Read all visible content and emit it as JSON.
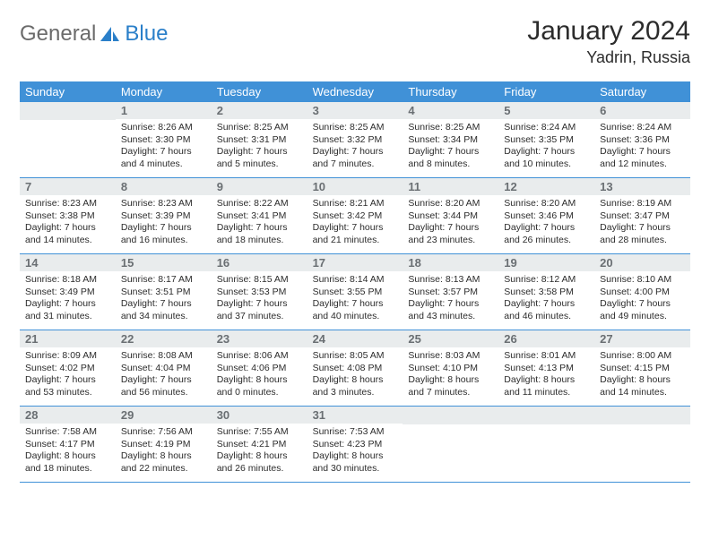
{
  "logo": {
    "general": "General",
    "blue": "Blue",
    "sail_color": "#2a7fc9",
    "general_color": "#6b6b6b"
  },
  "header": {
    "title": "January 2024",
    "location": "Yadrin, Russia"
  },
  "colors": {
    "header_bar": "#4091d7",
    "header_text": "#ffffff",
    "daynum_bg": "#e9eced",
    "daynum_text": "#6a6f73",
    "row_divider": "#4091d7",
    "body_text": "#2c2c2c",
    "background": "#ffffff"
  },
  "days_of_week": [
    "Sunday",
    "Monday",
    "Tuesday",
    "Wednesday",
    "Thursday",
    "Friday",
    "Saturday"
  ],
  "first_weekday_offset": 1,
  "days": [
    {
      "n": 1,
      "sunrise": "8:26 AM",
      "sunset": "3:30 PM",
      "daylight": "7 hours and 4 minutes."
    },
    {
      "n": 2,
      "sunrise": "8:25 AM",
      "sunset": "3:31 PM",
      "daylight": "7 hours and 5 minutes."
    },
    {
      "n": 3,
      "sunrise": "8:25 AM",
      "sunset": "3:32 PM",
      "daylight": "7 hours and 7 minutes."
    },
    {
      "n": 4,
      "sunrise": "8:25 AM",
      "sunset": "3:34 PM",
      "daylight": "7 hours and 8 minutes."
    },
    {
      "n": 5,
      "sunrise": "8:24 AM",
      "sunset": "3:35 PM",
      "daylight": "7 hours and 10 minutes."
    },
    {
      "n": 6,
      "sunrise": "8:24 AM",
      "sunset": "3:36 PM",
      "daylight": "7 hours and 12 minutes."
    },
    {
      "n": 7,
      "sunrise": "8:23 AM",
      "sunset": "3:38 PM",
      "daylight": "7 hours and 14 minutes."
    },
    {
      "n": 8,
      "sunrise": "8:23 AM",
      "sunset": "3:39 PM",
      "daylight": "7 hours and 16 minutes."
    },
    {
      "n": 9,
      "sunrise": "8:22 AM",
      "sunset": "3:41 PM",
      "daylight": "7 hours and 18 minutes."
    },
    {
      "n": 10,
      "sunrise": "8:21 AM",
      "sunset": "3:42 PM",
      "daylight": "7 hours and 21 minutes."
    },
    {
      "n": 11,
      "sunrise": "8:20 AM",
      "sunset": "3:44 PM",
      "daylight": "7 hours and 23 minutes."
    },
    {
      "n": 12,
      "sunrise": "8:20 AM",
      "sunset": "3:46 PM",
      "daylight": "7 hours and 26 minutes."
    },
    {
      "n": 13,
      "sunrise": "8:19 AM",
      "sunset": "3:47 PM",
      "daylight": "7 hours and 28 minutes."
    },
    {
      "n": 14,
      "sunrise": "8:18 AM",
      "sunset": "3:49 PM",
      "daylight": "7 hours and 31 minutes."
    },
    {
      "n": 15,
      "sunrise": "8:17 AM",
      "sunset": "3:51 PM",
      "daylight": "7 hours and 34 minutes."
    },
    {
      "n": 16,
      "sunrise": "8:15 AM",
      "sunset": "3:53 PM",
      "daylight": "7 hours and 37 minutes."
    },
    {
      "n": 17,
      "sunrise": "8:14 AM",
      "sunset": "3:55 PM",
      "daylight": "7 hours and 40 minutes."
    },
    {
      "n": 18,
      "sunrise": "8:13 AM",
      "sunset": "3:57 PM",
      "daylight": "7 hours and 43 minutes."
    },
    {
      "n": 19,
      "sunrise": "8:12 AM",
      "sunset": "3:58 PM",
      "daylight": "7 hours and 46 minutes."
    },
    {
      "n": 20,
      "sunrise": "8:10 AM",
      "sunset": "4:00 PM",
      "daylight": "7 hours and 49 minutes."
    },
    {
      "n": 21,
      "sunrise": "8:09 AM",
      "sunset": "4:02 PM",
      "daylight": "7 hours and 53 minutes."
    },
    {
      "n": 22,
      "sunrise": "8:08 AM",
      "sunset": "4:04 PM",
      "daylight": "7 hours and 56 minutes."
    },
    {
      "n": 23,
      "sunrise": "8:06 AM",
      "sunset": "4:06 PM",
      "daylight": "8 hours and 0 minutes."
    },
    {
      "n": 24,
      "sunrise": "8:05 AM",
      "sunset": "4:08 PM",
      "daylight": "8 hours and 3 minutes."
    },
    {
      "n": 25,
      "sunrise": "8:03 AM",
      "sunset": "4:10 PM",
      "daylight": "8 hours and 7 minutes."
    },
    {
      "n": 26,
      "sunrise": "8:01 AM",
      "sunset": "4:13 PM",
      "daylight": "8 hours and 11 minutes."
    },
    {
      "n": 27,
      "sunrise": "8:00 AM",
      "sunset": "4:15 PM",
      "daylight": "8 hours and 14 minutes."
    },
    {
      "n": 28,
      "sunrise": "7:58 AM",
      "sunset": "4:17 PM",
      "daylight": "8 hours and 18 minutes."
    },
    {
      "n": 29,
      "sunrise": "7:56 AM",
      "sunset": "4:19 PM",
      "daylight": "8 hours and 22 minutes."
    },
    {
      "n": 30,
      "sunrise": "7:55 AM",
      "sunset": "4:21 PM",
      "daylight": "8 hours and 26 minutes."
    },
    {
      "n": 31,
      "sunrise": "7:53 AM",
      "sunset": "4:23 PM",
      "daylight": "8 hours and 30 minutes."
    }
  ],
  "labels": {
    "sunrise": "Sunrise:",
    "sunset": "Sunset:",
    "daylight": "Daylight:"
  }
}
